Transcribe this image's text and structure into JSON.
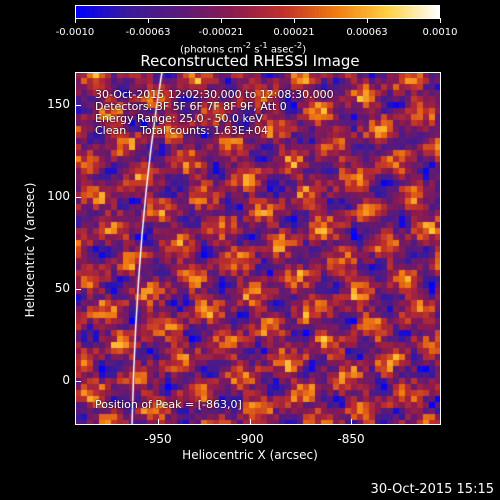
{
  "colorbar": {
    "ticks": [
      "-0.0010",
      "-0.00063",
      "-0.00021",
      "0.00021",
      "0.00063",
      "0.0010"
    ],
    "units_html": "(photons cm<sup>-2</sup> s<sup>-1</sup> asec<sup>-2</sup>)",
    "colors": [
      "#0000ff",
      "#3a1a9a",
      "#5a1a7a",
      "#8a1a50",
      "#c0302a",
      "#f07a10",
      "#ffd040",
      "#ffffff"
    ]
  },
  "plot": {
    "title": "Reconstructed RHESSI Image",
    "info_lines": [
      "30-Oct-2015 12:02:30.000 to 12:08:30.000",
      "Detectors: 3F 5F 6F 7F 8F 9F, Att 0",
      "Energy Range: 25.0 - 50.0 keV",
      "Clean    Total counts: 1.63E+04"
    ],
    "peak_text": "Position of Peak = [-863,0]",
    "x_label": "Heliocentric X (arcsec)",
    "y_label": "Heliocentric Y (arcsec)",
    "x_ticks": [
      "-950",
      "-900",
      "-850"
    ],
    "y_ticks": [
      "150",
      "100",
      "50",
      "0"
    ]
  },
  "timestamp": "30-Oct-2015 15:15"
}
